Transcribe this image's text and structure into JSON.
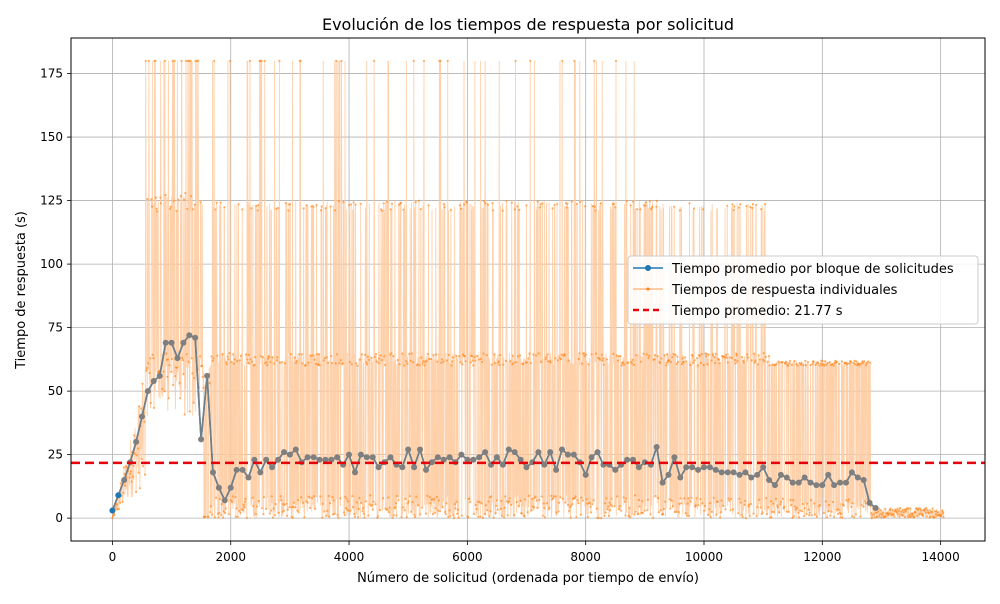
{
  "chart_data": {
    "type": "line",
    "title": "Evolución de los tiempos de respuesta por solicitud",
    "xlabel": "Número de solicitud (ordenada por tiempo de envío)",
    "ylabel": "Tiempo de respuesta (s)",
    "xlim": [
      -700,
      14750
    ],
    "ylim": [
      -9,
      189
    ],
    "xticks": [
      0,
      2000,
      4000,
      6000,
      8000,
      10000,
      12000,
      14000
    ],
    "yticks": [
      0,
      25,
      50,
      75,
      100,
      125,
      150,
      175
    ],
    "grid": true,
    "legend_position": "center-right",
    "colors": {
      "avg_line": "#1f77b4",
      "individual": "#ff7f0e",
      "individual_fill": "#ffc99c",
      "mean_line": "#e8000b",
      "avg_overlay": "#7f7f7f"
    },
    "series": [
      {
        "name": "Tiempo promedio por bloque de solicitudes",
        "x": [
          0,
          100,
          200,
          300,
          400,
          500,
          600,
          700,
          800,
          900,
          1000,
          1100,
          1200,
          1300,
          1400,
          1500,
          1600,
          1700,
          1800,
          1900,
          2000,
          2100,
          2200,
          2300,
          2400,
          2500,
          2600,
          2700,
          2800,
          2900,
          3000,
          3100,
          3200,
          3300,
          3400,
          3500,
          3600,
          3700,
          3800,
          3900,
          4000,
          4100,
          4200,
          4300,
          4400,
          4500,
          4600,
          4700,
          4800,
          4900,
          5000,
          5100,
          5200,
          5300,
          5400,
          5500,
          5600,
          5700,
          5800,
          5900,
          6000,
          6100,
          6200,
          6300,
          6400,
          6500,
          6600,
          6700,
          6800,
          6900,
          7000,
          7100,
          7200,
          7300,
          7400,
          7500,
          7600,
          7700,
          7800,
          7900,
          8000,
          8100,
          8200,
          8300,
          8400,
          8500,
          8600,
          8700,
          8800,
          8900,
          9000,
          9100,
          9200,
          9300,
          9400,
          9500,
          9600,
          9700,
          9800,
          9900,
          10000,
          10100,
          10200,
          10300,
          10400,
          10500,
          10600,
          10700,
          10800,
          10900,
          11000,
          11100,
          11200,
          11300,
          11400,
          11500,
          11600,
          11700,
          11800,
          11900,
          12000,
          12100,
          12200,
          12300,
          12400,
          12500,
          12600,
          12700,
          12800,
          12900
        ],
        "values": [
          3,
          9,
          15,
          22,
          30,
          40,
          50,
          54,
          56,
          69,
          69,
          63,
          69,
          72,
          71,
          31,
          56,
          18,
          12,
          7,
          12,
          19,
          19,
          16,
          23,
          18,
          23,
          20,
          23,
          26,
          25,
          27,
          22,
          24,
          24,
          23,
          23,
          23,
          24,
          21,
          25,
          18,
          25,
          24,
          24,
          20,
          22,
          24,
          21,
          20,
          27,
          20,
          27,
          19,
          22,
          24,
          23,
          24,
          22,
          25,
          23,
          23,
          24,
          26,
          21,
          24,
          21,
          27,
          26,
          23,
          20,
          22,
          26,
          21,
          26,
          19,
          27,
          25,
          25,
          22,
          17,
          24,
          26,
          21,
          21,
          19,
          21,
          23,
          23,
          20,
          22,
          21,
          28,
          14,
          17,
          24,
          16,
          20,
          20,
          19,
          20,
          20,
          19,
          18,
          18,
          18,
          17,
          18,
          16,
          17,
          20,
          15,
          13,
          17,
          16,
          14,
          14,
          16,
          14,
          13,
          13,
          17,
          13,
          14,
          14,
          18,
          16,
          15,
          6,
          4
        ]
      },
      {
        "name": "Tiempos de respuesta individuales"
      },
      {
        "name": "Tiempo promedio: 21.77 s",
        "value": 21.77
      }
    ],
    "individual_bands": [
      {
        "x_start": 0,
        "x_end": 600,
        "note": "ramp"
      },
      {
        "x_start": 560,
        "x_end": 9250,
        "value": 180
      },
      {
        "x_start": 560,
        "x_end": 11100,
        "value": 122
      },
      {
        "x_start": 1650,
        "x_end": 12800,
        "value": 61
      },
      {
        "x_start": 1550,
        "x_end": 14050,
        "value": 2
      }
    ]
  }
}
